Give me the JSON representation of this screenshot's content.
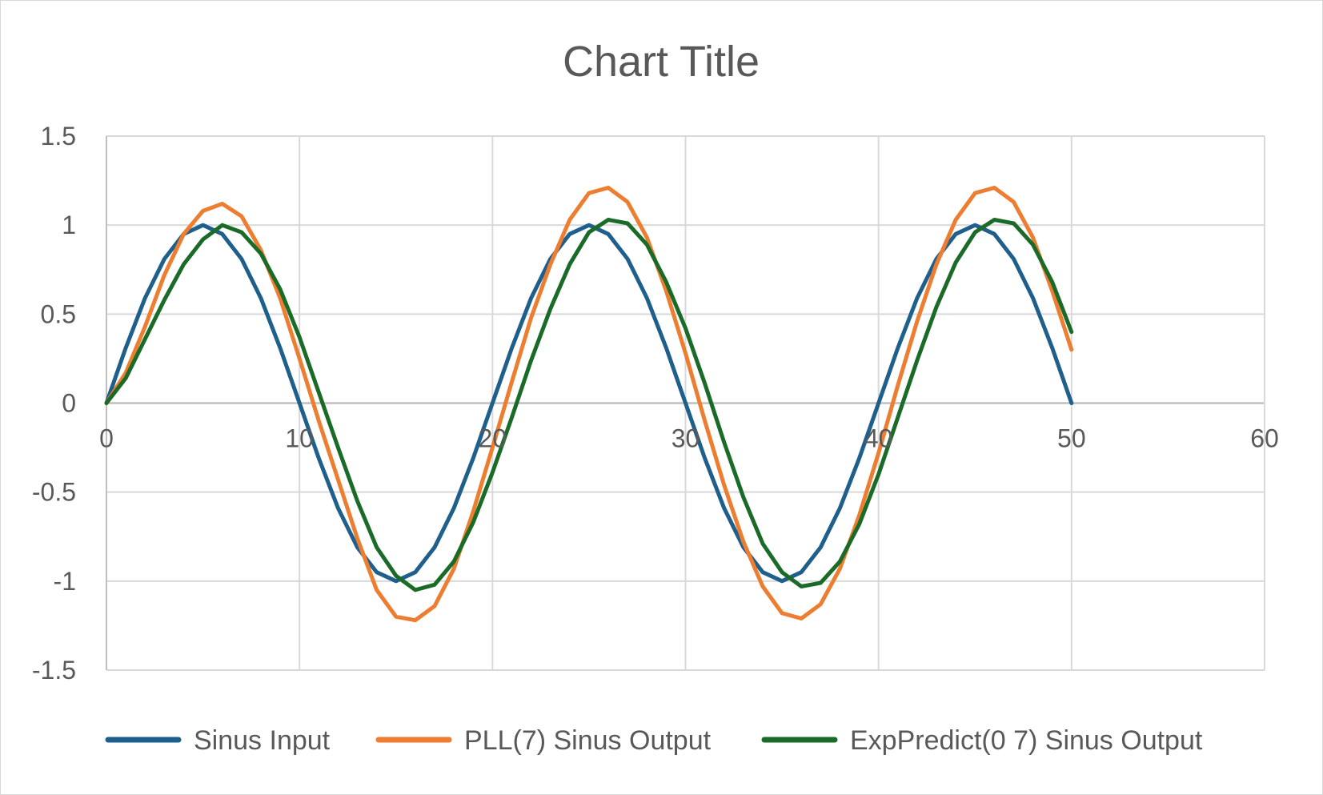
{
  "chart_data": {
    "type": "line",
    "title": "Chart Title",
    "xlabel": "",
    "ylabel": "",
    "xlim": [
      0,
      60
    ],
    "ylim": [
      -1.5,
      1.5
    ],
    "x_ticks": [
      "0",
      "10",
      "20",
      "30",
      "40",
      "50",
      "60"
    ],
    "y_ticks": [
      "1.5",
      "1",
      "0.5",
      "0",
      "-0.5",
      "-1",
      "-1.5"
    ],
    "x_tick_values": [
      0,
      10,
      20,
      30,
      40,
      50,
      60
    ],
    "y_tick_values": [
      1.5,
      1,
      0.5,
      0,
      -0.5,
      -1,
      -1.5
    ],
    "grid": true,
    "legend_position": "bottom",
    "x": [
      0,
      1,
      2,
      3,
      4,
      5,
      6,
      7,
      8,
      9,
      10,
      11,
      12,
      13,
      14,
      15,
      16,
      17,
      18,
      19,
      20,
      21,
      22,
      23,
      24,
      25,
      26,
      27,
      28,
      29,
      30,
      31,
      32,
      33,
      34,
      35,
      36,
      37,
      38,
      39,
      40,
      41,
      42,
      43,
      44,
      45,
      46,
      47,
      48,
      49,
      50
    ],
    "series": [
      {
        "name": "Sinus Input",
        "color": "#1f5f8b",
        "values": [
          0.0,
          0.31,
          0.59,
          0.81,
          0.95,
          1.0,
          0.95,
          0.81,
          0.59,
          0.31,
          0.0,
          -0.31,
          -0.59,
          -0.81,
          -0.95,
          -1.0,
          -0.95,
          -0.81,
          -0.59,
          -0.31,
          0.0,
          0.31,
          0.59,
          0.81,
          0.95,
          1.0,
          0.95,
          0.81,
          0.59,
          0.31,
          0.0,
          -0.31,
          -0.59,
          -0.81,
          -0.95,
          -1.0,
          -0.95,
          -0.81,
          -0.59,
          -0.31,
          0.0,
          0.31,
          0.59,
          0.81,
          0.95,
          1.0,
          0.95,
          0.81,
          0.59,
          0.31,
          0.0
        ]
      },
      {
        "name": "PLL(7) Sinus Output",
        "color": "#ed7d31",
        "values": [
          0.0,
          0.17,
          0.43,
          0.72,
          0.95,
          1.08,
          1.12,
          1.05,
          0.86,
          0.59,
          0.25,
          -0.1,
          -0.43,
          -0.76,
          -1.05,
          -1.2,
          -1.22,
          -1.14,
          -0.93,
          -0.61,
          -0.25,
          0.12,
          0.48,
          0.78,
          1.03,
          1.18,
          1.21,
          1.13,
          0.93,
          0.63,
          0.28,
          -0.1,
          -0.46,
          -0.78,
          -1.03,
          -1.18,
          -1.21,
          -1.13,
          -0.93,
          -0.63,
          -0.28,
          0.1,
          0.46,
          0.78,
          1.03,
          1.18,
          1.21,
          1.13,
          0.93,
          0.63,
          0.3
        ]
      },
      {
        "name": "ExpPredict(0 7) Sinus Output",
        "color": "#1b6b28",
        "values": [
          0.0,
          0.14,
          0.36,
          0.58,
          0.78,
          0.92,
          1.0,
          0.96,
          0.84,
          0.64,
          0.37,
          0.06,
          -0.25,
          -0.55,
          -0.81,
          -0.97,
          -1.05,
          -1.02,
          -0.89,
          -0.67,
          -0.39,
          -0.08,
          0.24,
          0.53,
          0.78,
          0.96,
          1.03,
          1.01,
          0.89,
          0.68,
          0.42,
          0.11,
          -0.22,
          -0.53,
          -0.79,
          -0.95,
          -1.03,
          -1.01,
          -0.89,
          -0.68,
          -0.4,
          -0.08,
          0.24,
          0.54,
          0.79,
          0.96,
          1.03,
          1.01,
          0.89,
          0.68,
          0.4
        ]
      }
    ]
  }
}
